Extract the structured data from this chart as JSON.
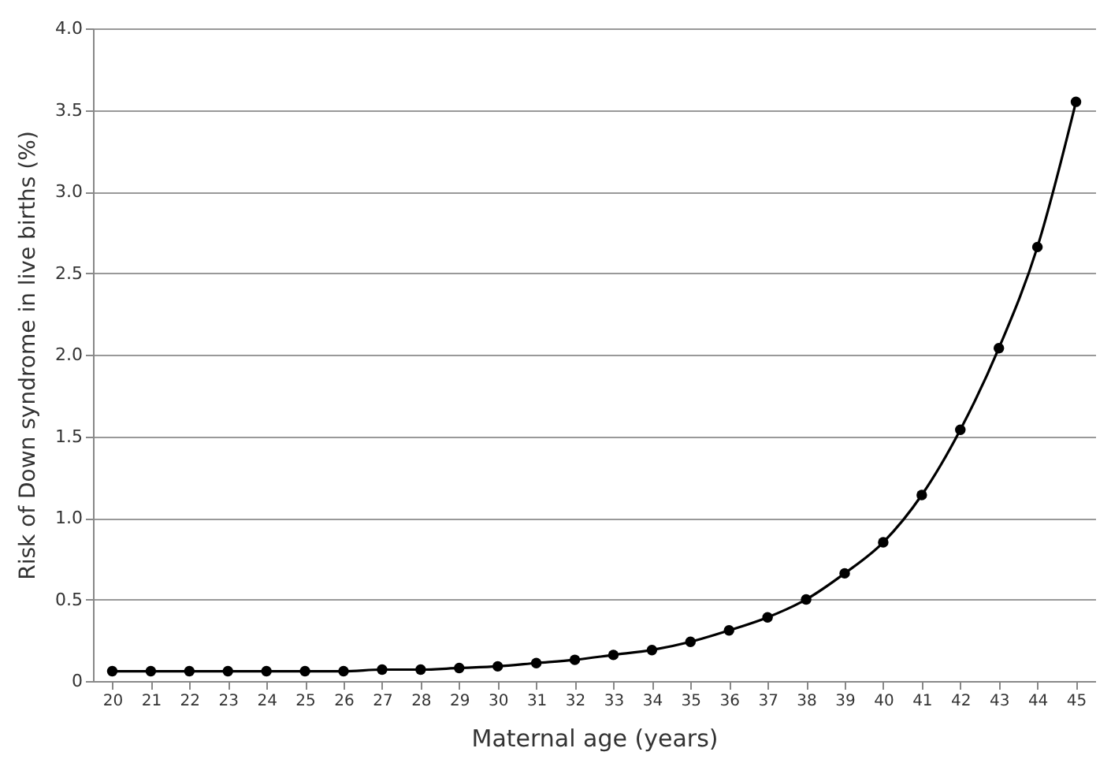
{
  "chart_data": {
    "type": "line",
    "xlabel": "Maternal age (years)",
    "ylabel": "Risk of Down syndrome in live births (%)",
    "categories": [
      "20",
      "21",
      "22",
      "23",
      "24",
      "25",
      "26",
      "27",
      "28",
      "29",
      "30",
      "31",
      "32",
      "33",
      "34",
      "35",
      "36",
      "37",
      "38",
      "39",
      "40",
      "41",
      "42",
      "43",
      "44",
      "45"
    ],
    "series": [
      {
        "color": "#000000",
        "values": [
          0.06,
          0.06,
          0.06,
          0.06,
          0.06,
          0.06,
          0.06,
          0.07,
          0.07,
          0.08,
          0.09,
          0.11,
          0.13,
          0.16,
          0.19,
          0.24,
          0.31,
          0.39,
          0.5,
          0.66,
          0.85,
          1.14,
          1.54,
          2.04,
          2.66,
          3.55
        ]
      }
    ],
    "ylim": [
      0,
      4.0
    ],
    "yticks": [
      0,
      {
        "value": 0.5,
        "label": "0.5"
      },
      {
        "value": 1,
        "label": "1.0"
      },
      {
        "value": 1.5,
        "label": "1.5"
      },
      {
        "value": 2,
        "label": "2.0"
      },
      {
        "value": 2.5,
        "label": "2.5"
      },
      {
        "value": 3,
        "label": "3.0"
      },
      {
        "value": 3.5,
        "label": "3.5"
      },
      {
        "value": 4,
        "label": "4.0"
      }
    ],
    "grid": "y",
    "marker": "circle",
    "line_style": "solid"
  }
}
